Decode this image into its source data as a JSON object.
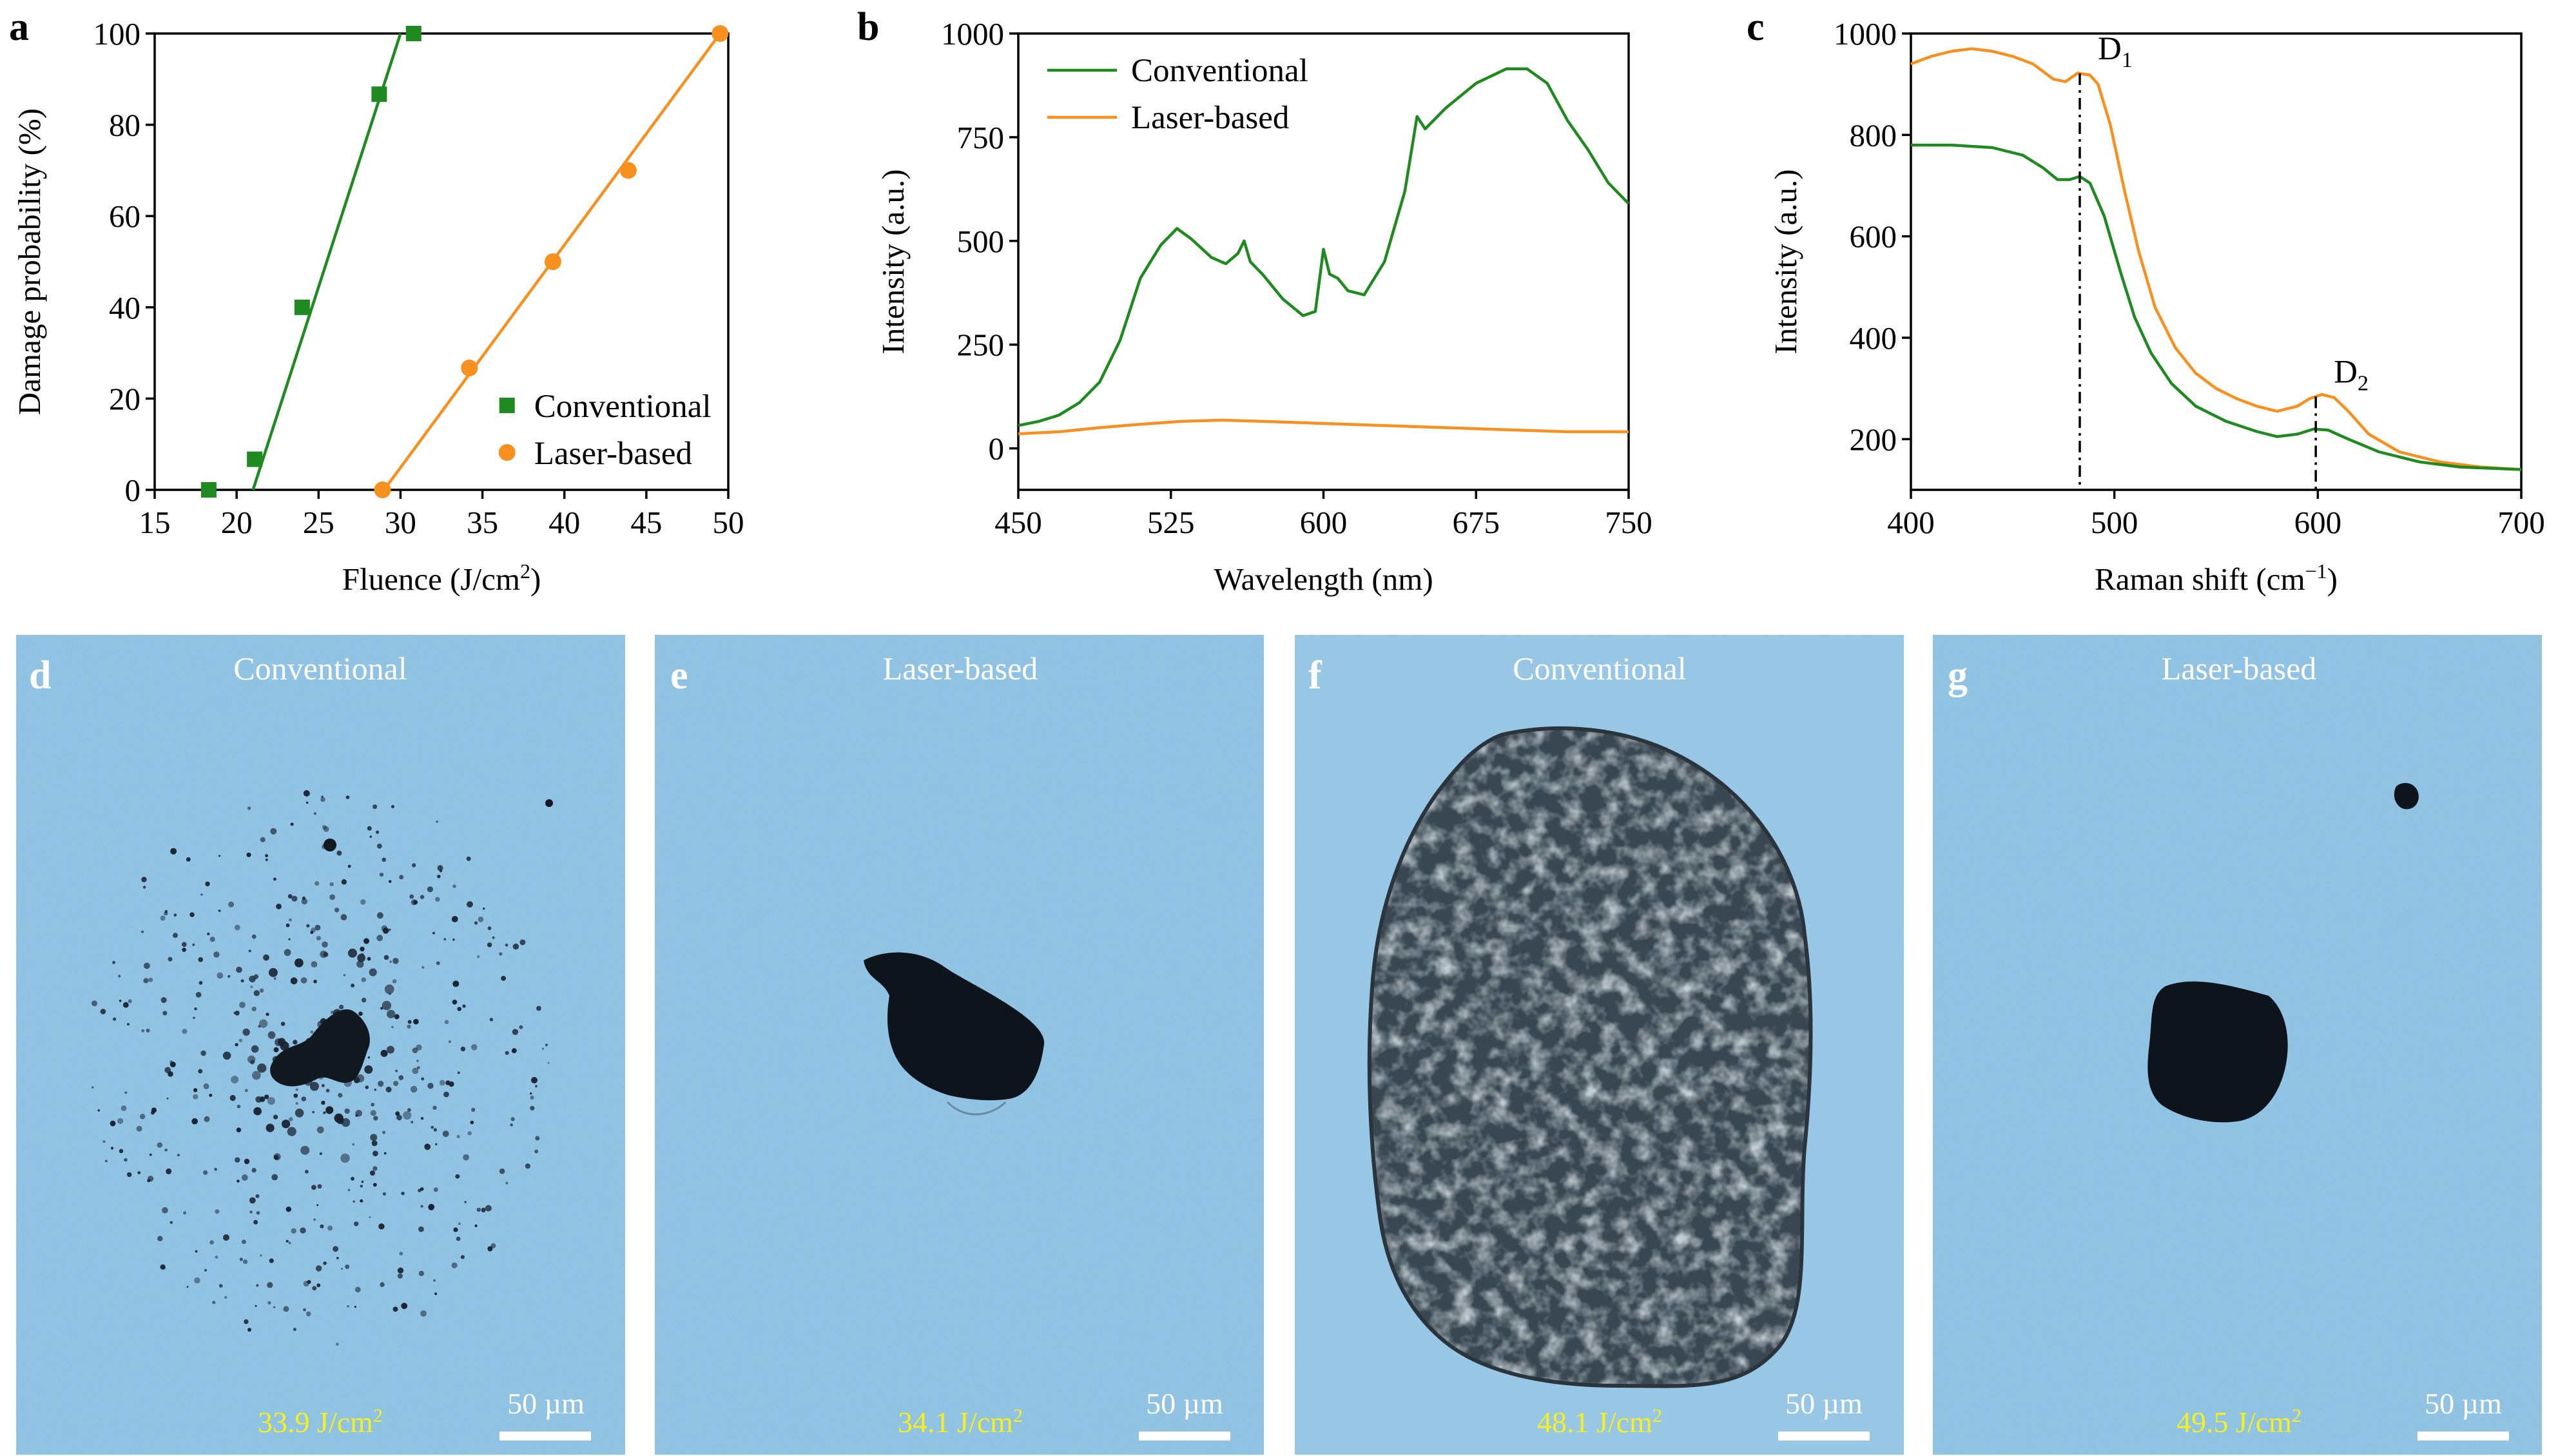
{
  "colors": {
    "conventional": "#1f8a1f",
    "laser": "#f7901e",
    "micrograph_bg": "#8ec1e2",
    "fluence_text": "#f5f01e"
  },
  "chart_data": [
    {
      "panel": "a",
      "type": "scatter",
      "xlabel": "Fluence (J/cm",
      "xlabel_sup": "2",
      "xlabel_end": ")",
      "ylabel": "Damage probability (%)",
      "xlim": [
        15,
        50
      ],
      "ylim": [
        0,
        100
      ],
      "xticks": [
        "15",
        "20",
        "25",
        "30",
        "35",
        "40",
        "45",
        "50"
      ],
      "yticks": [
        "0",
        "20",
        "40",
        "60",
        "80",
        "100"
      ],
      "legend_position": "bottom-right",
      "series": [
        {
          "name": "Conventional",
          "marker": "square",
          "points": [
            [
              18.3,
              0
            ],
            [
              21.1,
              6.7
            ],
            [
              24.0,
              40
            ],
            [
              28.7,
              86.7
            ],
            [
              30.8,
              100
            ]
          ],
          "fit": [
            [
              21.0,
              0
            ],
            [
              30.0,
              100
            ]
          ]
        },
        {
          "name": "Laser-based",
          "marker": "circle",
          "points": [
            [
              28.9,
              0
            ],
            [
              34.2,
              26.7
            ],
            [
              39.3,
              50
            ],
            [
              43.9,
              70
            ],
            [
              49.5,
              100
            ]
          ],
          "fit": [
            [
              29.0,
              0
            ],
            [
              49.5,
              100
            ]
          ]
        }
      ]
    },
    {
      "panel": "b",
      "type": "line",
      "xlabel": "Wavelength (nm)",
      "ylabel": "Intensity (a.u.)",
      "xlim": [
        450,
        750
      ],
      "ylim": [
        -100,
        1000
      ],
      "xticks": [
        "450",
        "525",
        "600",
        "675",
        "750"
      ],
      "yticks": [
        "0",
        "250",
        "500",
        "750",
        "1000"
      ],
      "legend_position": "top-left",
      "series": [
        {
          "name": "Conventional",
          "points": [
            [
              450,
              55
            ],
            [
              460,
              65
            ],
            [
              470,
              80
            ],
            [
              480,
              110
            ],
            [
              490,
              160
            ],
            [
              500,
              260
            ],
            [
              510,
              410
            ],
            [
              520,
              490
            ],
            [
              528,
              530
            ],
            [
              535,
              505
            ],
            [
              545,
              460
            ],
            [
              552,
              445
            ],
            [
              558,
              470
            ],
            [
              561,
              500
            ],
            [
              564,
              450
            ],
            [
              570,
              420
            ],
            [
              580,
              360
            ],
            [
              590,
              320
            ],
            [
              596,
              330
            ],
            [
              600,
              480
            ],
            [
              603,
              420
            ],
            [
              607,
              410
            ],
            [
              612,
              380
            ],
            [
              620,
              370
            ],
            [
              630,
              450
            ],
            [
              640,
              620
            ],
            [
              646,
              800
            ],
            [
              650,
              770
            ],
            [
              660,
              820
            ],
            [
              675,
              880
            ],
            [
              690,
              915
            ],
            [
              700,
              915
            ],
            [
              710,
              880
            ],
            [
              720,
              790
            ],
            [
              730,
              720
            ],
            [
              740,
              640
            ],
            [
              750,
              590
            ]
          ]
        },
        {
          "name": "Laser-based",
          "points": [
            [
              450,
              35
            ],
            [
              470,
              40
            ],
            [
              490,
              50
            ],
            [
              510,
              58
            ],
            [
              530,
              65
            ],
            [
              550,
              68
            ],
            [
              570,
              65
            ],
            [
              600,
              60
            ],
            [
              630,
              55
            ],
            [
              660,
              50
            ],
            [
              690,
              45
            ],
            [
              720,
              40
            ],
            [
              750,
              40
            ]
          ]
        }
      ]
    },
    {
      "panel": "c",
      "type": "line",
      "xlabel": "Raman shift (cm",
      "xlabel_sup": "−1",
      "xlabel_end": ")",
      "ylabel": "Intensity (a.u.)",
      "xlim": [
        400,
        700
      ],
      "ylim": [
        100,
        1000
      ],
      "xticks": [
        "400",
        "500",
        "600",
        "700"
      ],
      "yticks": [
        "200",
        "400",
        "600",
        "800",
        "1000"
      ],
      "annotations": [
        {
          "label": "D",
          "sub": "1",
          "x": 483
        },
        {
          "label": "D",
          "sub": "2",
          "x": 599
        }
      ],
      "series": [
        {
          "name": "Laser-based",
          "points": [
            [
              400,
              940
            ],
            [
              410,
              955
            ],
            [
              420,
              965
            ],
            [
              430,
              970
            ],
            [
              440,
              965
            ],
            [
              450,
              955
            ],
            [
              460,
              940
            ],
            [
              470,
              910
            ],
            [
              476,
              905
            ],
            [
              482,
              922
            ],
            [
              488,
              918
            ],
            [
              492,
              900
            ],
            [
              498,
              820
            ],
            [
              505,
              690
            ],
            [
              512,
              570
            ],
            [
              520,
              460
            ],
            [
              530,
              380
            ],
            [
              540,
              330
            ],
            [
              550,
              300
            ],
            [
              560,
              280
            ],
            [
              570,
              265
            ],
            [
              580,
              255
            ],
            [
              590,
              265
            ],
            [
              596,
              280
            ],
            [
              602,
              288
            ],
            [
              608,
              282
            ],
            [
              615,
              255
            ],
            [
              625,
              210
            ],
            [
              640,
              175
            ],
            [
              660,
              155
            ],
            [
              680,
              145
            ],
            [
              700,
              140
            ]
          ]
        },
        {
          "name": "Conventional",
          "points": [
            [
              400,
              780
            ],
            [
              420,
              780
            ],
            [
              440,
              775
            ],
            [
              455,
              760
            ],
            [
              465,
              735
            ],
            [
              472,
              712
            ],
            [
              478,
              712
            ],
            [
              483,
              718
            ],
            [
              488,
              705
            ],
            [
              495,
              640
            ],
            [
              503,
              530
            ],
            [
              510,
              440
            ],
            [
              518,
              370
            ],
            [
              528,
              310
            ],
            [
              540,
              265
            ],
            [
              555,
              235
            ],
            [
              570,
              215
            ],
            [
              580,
              205
            ],
            [
              590,
              210
            ],
            [
              598,
              220
            ],
            [
              605,
              218
            ],
            [
              615,
              200
            ],
            [
              630,
              175
            ],
            [
              650,
              155
            ],
            [
              670,
              145
            ],
            [
              700,
              140
            ]
          ]
        }
      ]
    }
  ],
  "micrographs": [
    {
      "letter": "d",
      "title": "Conventional",
      "fluence": "33.9 J/cm",
      "fluence_sup": "2",
      "scale": "50 µm"
    },
    {
      "letter": "e",
      "title": "Laser-based",
      "fluence": "34.1 J/cm",
      "fluence_sup": "2",
      "scale": "50 µm"
    },
    {
      "letter": "f",
      "title": "Conventional",
      "fluence": "48.1 J/cm",
      "fluence_sup": "2",
      "scale": "50 µm"
    },
    {
      "letter": "g",
      "title": "Laser-based",
      "fluence": "49.5 J/cm",
      "fluence_sup": "2",
      "scale": "50 µm"
    }
  ]
}
